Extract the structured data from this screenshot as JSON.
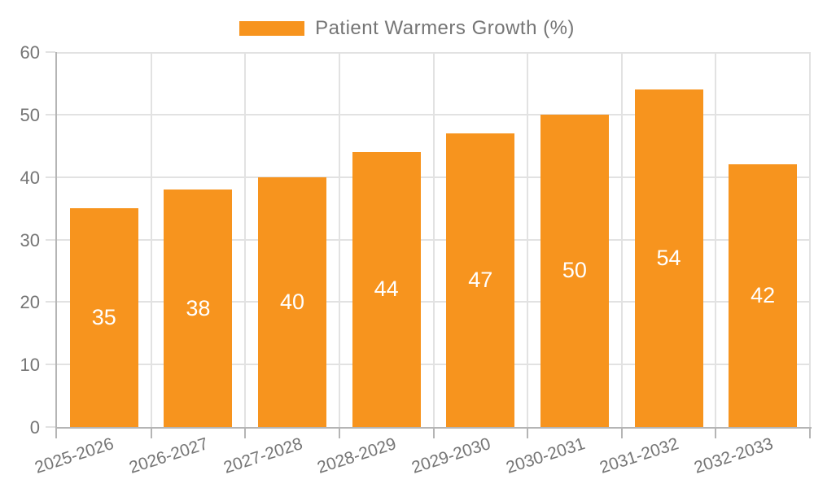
{
  "legend": {
    "label": "Patient Warmers Growth (%)"
  },
  "colors": {
    "bar": "#f7941e",
    "bar_label": "#ffffff",
    "axis": "#b5b5b5",
    "gridline": "#e2e2e2",
    "text": "#757575"
  },
  "chart_data": {
    "type": "bar",
    "title": "",
    "xlabel": "",
    "ylabel": "",
    "series_name": "Patient Warmers Growth (%)",
    "categories": [
      "2025-2026",
      "2026-2027",
      "2027-2028",
      "2028-2029",
      "2029-2030",
      "2030-2031",
      "2031-2032",
      "2032-2033"
    ],
    "values": [
      35,
      38,
      40,
      44,
      47,
      50,
      54,
      42
    ],
    "bar_labels": [
      35,
      38,
      40,
      44,
      47,
      50,
      54,
      42
    ],
    "ylim": [
      0,
      60
    ],
    "yticks": [
      0,
      10,
      20,
      30,
      40,
      50,
      60
    ],
    "grid": true,
    "legend_position": "top",
    "bar_label_position": "center"
  }
}
